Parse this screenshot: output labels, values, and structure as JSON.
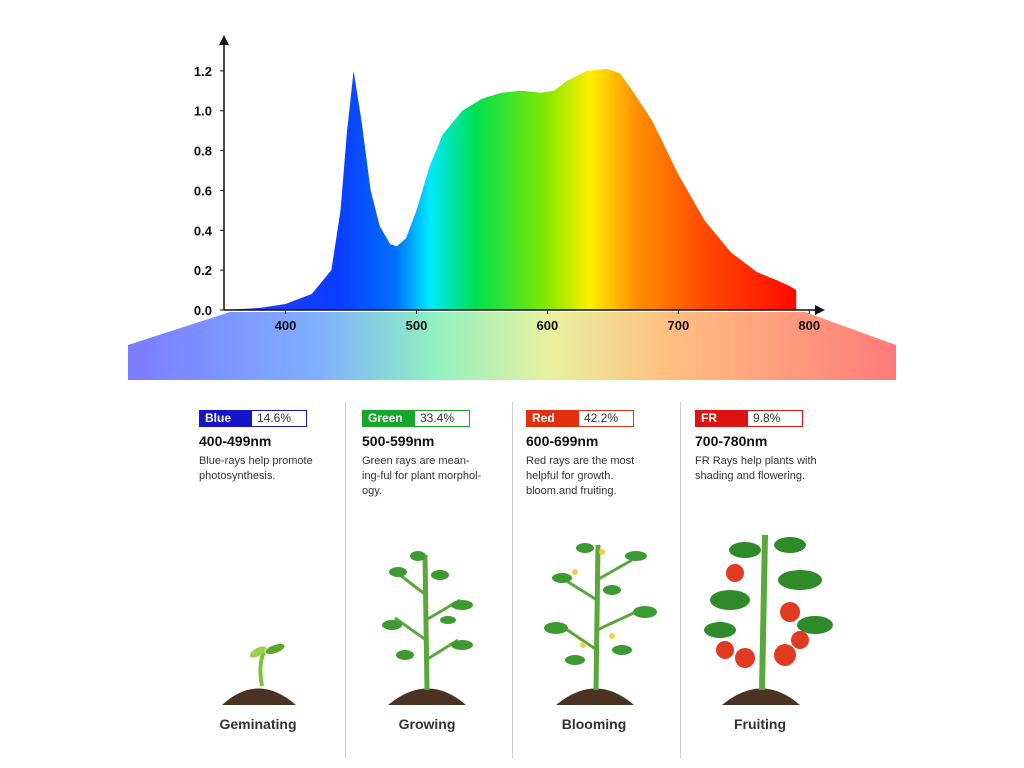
{
  "chart_data": {
    "type": "area",
    "x": [
      353,
      380,
      400,
      420,
      435,
      442,
      447,
      452,
      458,
      465,
      472,
      480,
      485,
      492,
      500,
      510,
      520,
      535,
      550,
      565,
      580,
      595,
      605,
      615,
      630,
      645,
      655,
      665,
      680,
      700,
      720,
      740,
      760,
      775,
      785,
      790
    ],
    "values": [
      0,
      0.01,
      0.03,
      0.08,
      0.2,
      0.5,
      0.9,
      1.2,
      0.95,
      0.6,
      0.42,
      0.33,
      0.32,
      0.36,
      0.5,
      0.72,
      0.88,
      1.0,
      1.06,
      1.09,
      1.1,
      1.09,
      1.1,
      1.15,
      1.2,
      1.21,
      1.19,
      1.1,
      0.95,
      0.68,
      0.45,
      0.29,
      0.19,
      0.15,
      0.12,
      0.1
    ],
    "xlim": [
      353,
      812
    ],
    "ylim": [
      0,
      1.38
    ],
    "xticks": [
      400,
      500,
      600,
      700,
      800
    ],
    "yticks": [
      {
        "value": 0,
        "label": "0.0"
      },
      0.2,
      0.4,
      0.6,
      0.8,
      {
        "value": 1,
        "label": "1.0"
      },
      1.2
    ]
  },
  "panels": [
    {
      "name": "Blue",
      "percent": "14.6%",
      "range": "400-499nm",
      "description": [
        "Blue-rays help promote",
        "photosynthesis."
      ],
      "stage": "Geminating"
    },
    {
      "name": "Green",
      "percent": "33.4%",
      "range": "500-599nm",
      "description": [
        "Green rays are mean-",
        "ing-ful for plant morphol-",
        "ogy."
      ],
      "stage": "Growing"
    },
    {
      "name": "Red",
      "percent": "42.2%",
      "range": "600-699nm",
      "description": [
        "Red rays are the most",
        "helpful for growth.",
        "bloom.and fruiting."
      ],
      "stage": "Blooming"
    },
    {
      "name": "FR",
      "percent": "9.8%",
      "range": "700-780nm",
      "description": [
        "FR Rays help plants with",
        "shading and flowering."
      ],
      "stage": "Fruiting"
    }
  ]
}
